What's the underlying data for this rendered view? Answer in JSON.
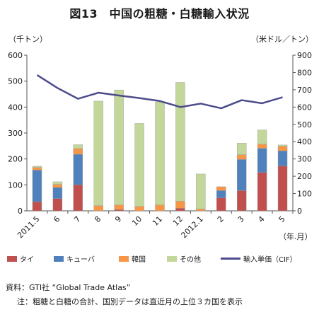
{
  "title": "図13　中国の粗糖・白糖輸入状況",
  "units": {
    "left": "（千トン）",
    "right": "（米ドル／トン）",
    "x": "（年.月）"
  },
  "legend": {
    "thai": "タイ",
    "cuba": "キューバ",
    "korea": "韓国",
    "other": "その他",
    "line": "輸入単価（CIF）"
  },
  "notes": {
    "source": "資料：GTI社 “Global Trade Atlas”",
    "note": "注：粗糖と白糖の合計、国別データは直近月の上位３カ国を表示"
  },
  "chart_data": {
    "type": "bar",
    "stacked": true,
    "categories": [
      "2011.5",
      "6",
      "7",
      "8",
      "9",
      "10",
      "11",
      "12",
      "2012.1",
      "2",
      "3",
      "4",
      "5"
    ],
    "series": [
      {
        "name": "タイ",
        "color": "#c0504d",
        "values": [
          35,
          47,
          100,
          0,
          5,
          0,
          0,
          10,
          0,
          50,
          78,
          148,
          173
        ]
      },
      {
        "name": "キューバ",
        "color": "#4f81bd",
        "values": [
          122,
          43,
          118,
          0,
          0,
          0,
          0,
          0,
          0,
          28,
          120,
          93,
          58
        ]
      },
      {
        "name": "韓国",
        "color": "#f79646",
        "values": [
          10,
          12,
          22,
          20,
          18,
          17,
          23,
          27,
          7,
          15,
          18,
          16,
          18
        ]
      },
      {
        "name": "その他",
        "color": "#c4d79b",
        "values": [
          5,
          10,
          15,
          403,
          443,
          320,
          397,
          458,
          135,
          0,
          45,
          55,
          5
        ]
      }
    ],
    "line": {
      "name": "輸入単価（CIF）",
      "axis": "right",
      "color": "#4c4c8c",
      "values": [
        785,
        710,
        648,
        683,
        667,
        652,
        635,
        600,
        620,
        593,
        640,
        622,
        657
      ]
    },
    "ylabel": "（千トン）",
    "y2label": "（米ドル／トン）",
    "xlabel": "（年.月）",
    "ylim": [
      0,
      600
    ],
    "y2lim": [
      0,
      900
    ],
    "yticks": [
      0,
      100,
      200,
      300,
      400,
      500,
      600
    ],
    "y2ticks": [
      0,
      100,
      200,
      300,
      400,
      500,
      600,
      700,
      800,
      900
    ],
    "grid": false,
    "legend_position": "bottom"
  }
}
